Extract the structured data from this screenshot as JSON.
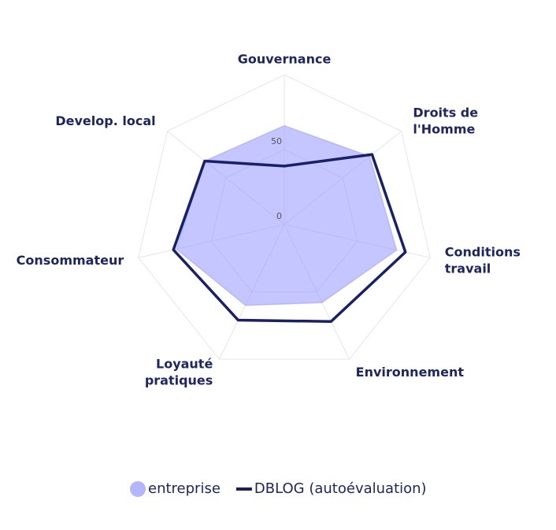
{
  "chart_data": {
    "type": "radar",
    "categories": [
      [
        "Gouvernance"
      ],
      [
        "Droits de",
        "l'Homme"
      ],
      [
        "Conditions",
        "travail"
      ],
      [
        "Environnement"
      ],
      [
        "Loyauté",
        "pratiques"
      ],
      [
        "Consommateur"
      ],
      [
        "Develop. local"
      ]
    ],
    "series": [
      {
        "name": "entreprise",
        "color": "#9696ff",
        "fill": true,
        "values": [
          66,
          73,
          77,
          58,
          60,
          74,
          68
        ]
      },
      {
        "name": "DBLOG (autoévaluation)",
        "color": "#17216b",
        "fill": false,
        "values": [
          39,
          75,
          83,
          72,
          71,
          76,
          68
        ]
      }
    ],
    "ylim": [
      0,
      100
    ],
    "yticks": [
      0,
      50
    ],
    "grid": true
  }
}
